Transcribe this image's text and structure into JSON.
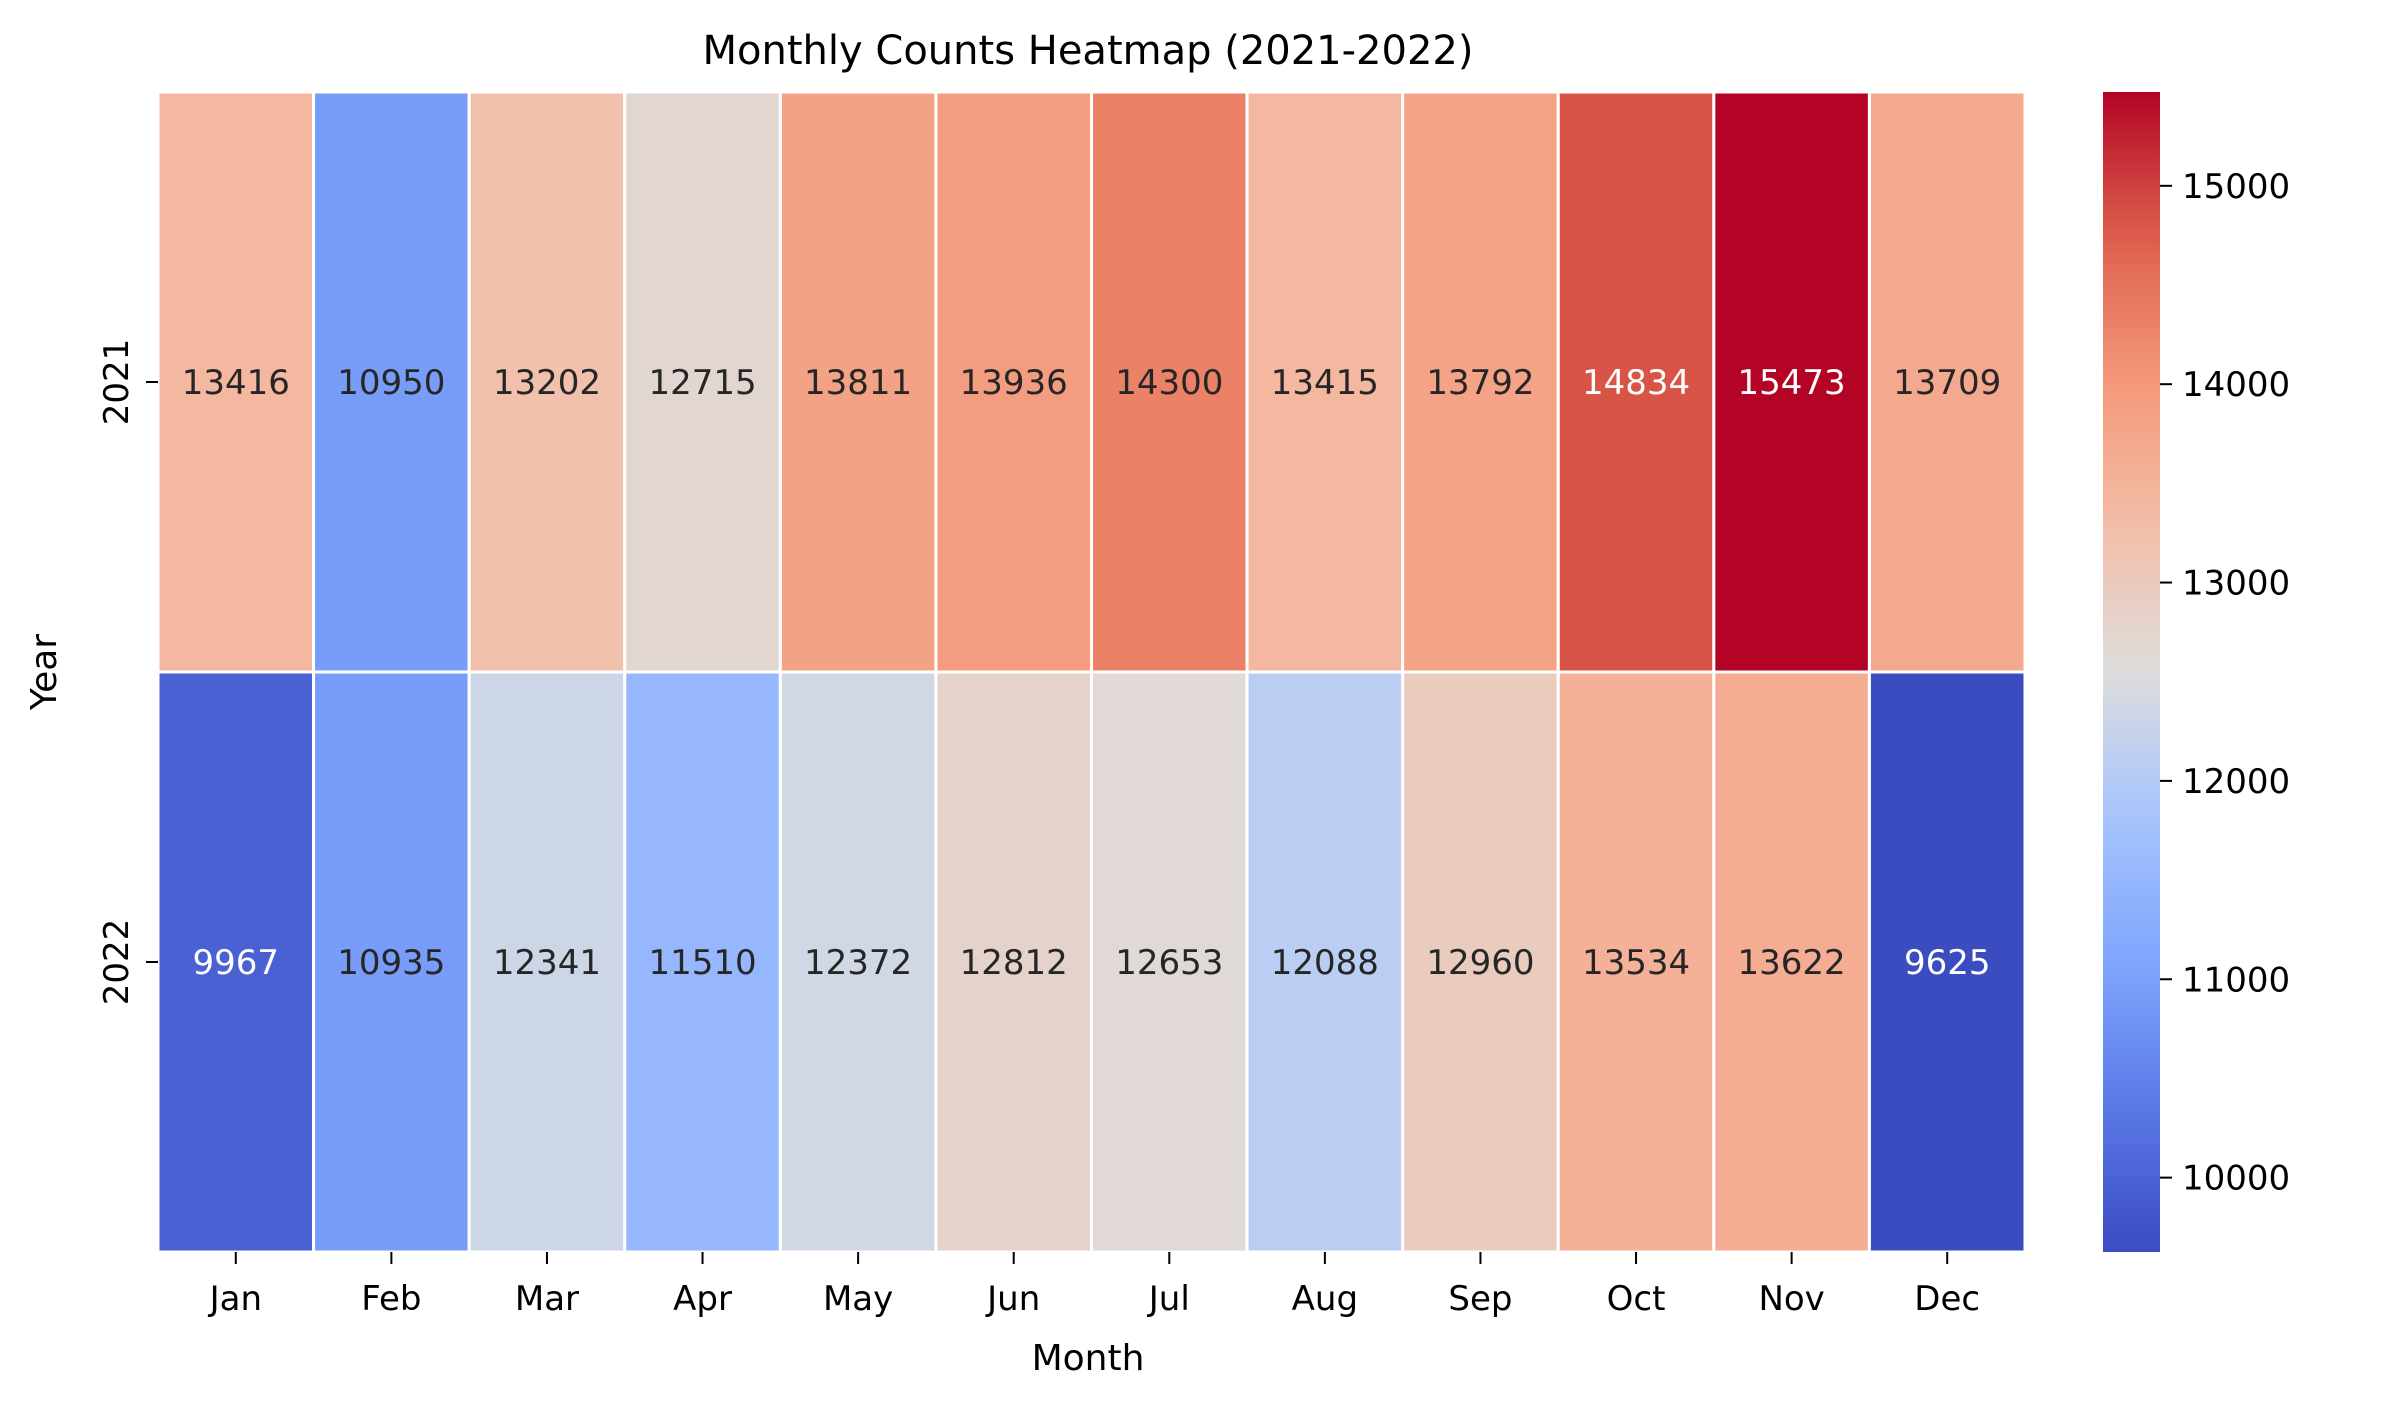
{
  "chart_data": {
    "type": "heatmap",
    "title": "Monthly Counts Heatmap (2021-2022)",
    "xlabel": "Month",
    "ylabel": "Year",
    "x_categories": [
      "Jan",
      "Feb",
      "Mar",
      "Apr",
      "May",
      "Jun",
      "Jul",
      "Aug",
      "Sep",
      "Oct",
      "Nov",
      "Dec"
    ],
    "y_categories": [
      "2021",
      "2022"
    ],
    "values": [
      [
        13416,
        10950,
        13202,
        12715,
        13811,
        13936,
        14300,
        13415,
        13792,
        14834,
        15473,
        13709
      ],
      [
        9967,
        10935,
        12341,
        11510,
        12372,
        12812,
        12653,
        12088,
        12960,
        13534,
        13622,
        9625
      ]
    ],
    "colormap": "coolwarm",
    "colorbar": {
      "min": 9625,
      "max": 15473,
      "ticks": [
        10000,
        11000,
        12000,
        13000,
        14000,
        15000
      ],
      "placement": "right"
    },
    "annotations": true,
    "grid": false
  }
}
